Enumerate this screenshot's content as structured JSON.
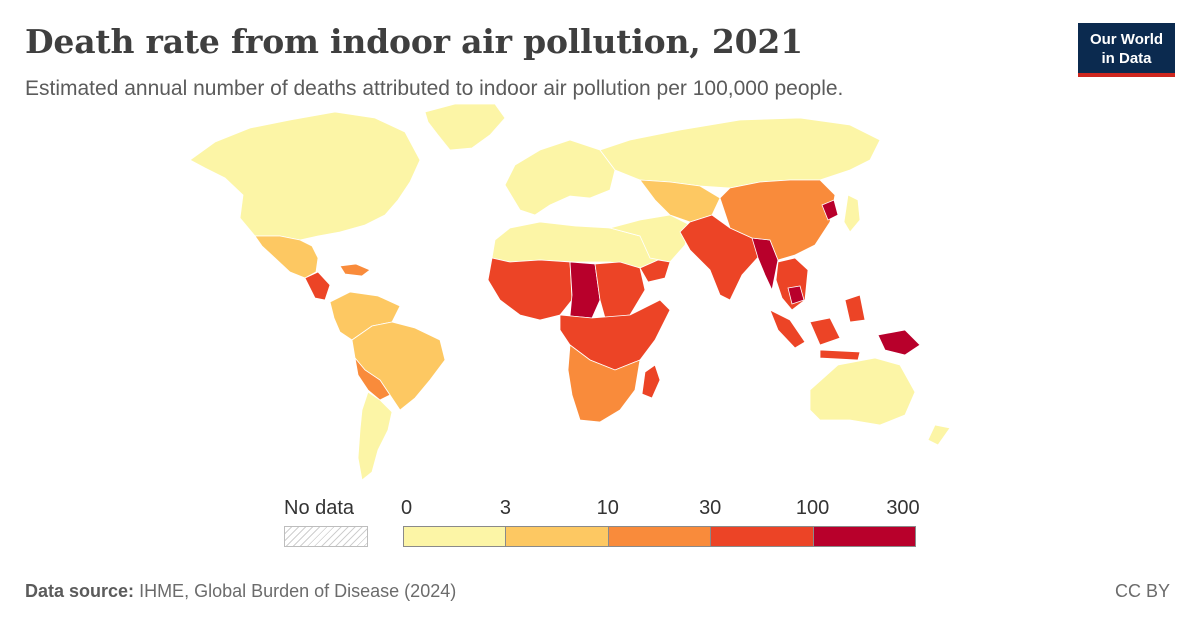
{
  "header": {
    "title": "Death rate from indoor air pollution, 2021",
    "subtitle": "Estimated annual number of deaths attributed to indoor air pollution per 100,000 people."
  },
  "logo": {
    "line1": "Our World",
    "line2": "in Data",
    "bg_color": "#0b2a4f",
    "accent_color": "#ce261e"
  },
  "legend": {
    "no_data_label": "No data",
    "ticks": [
      "0",
      "3",
      "10",
      "30",
      "100",
      "300"
    ],
    "bin_colors": [
      "#fcf5a6",
      "#fdc862",
      "#f98b3b",
      "#ec4426",
      "#b8002b"
    ]
  },
  "footer": {
    "source_label": "Data source:",
    "source_text": "IHME, Global Burden of Disease (2024)",
    "license": "CC BY"
  },
  "chart_data": {
    "type": "choropleth",
    "year": 2021,
    "scale_bins": [
      [
        0,
        3
      ],
      [
        3,
        10
      ],
      [
        10,
        30
      ],
      [
        30,
        100
      ],
      [
        100,
        300
      ]
    ],
    "regions": [
      {
        "name": "North America",
        "bin": 0
      },
      {
        "name": "Greenland",
        "bin": 0
      },
      {
        "name": "Mexico",
        "bin": 1
      },
      {
        "name": "Central America",
        "bin": 3
      },
      {
        "name": "Caribbean",
        "bin": 2
      },
      {
        "name": "Northern South America",
        "bin": 1
      },
      {
        "name": "Brazil",
        "bin": 1
      },
      {
        "name": "Bolivia & Paraguay",
        "bin": 2
      },
      {
        "name": "Southern South America",
        "bin": 0
      },
      {
        "name": "Europe",
        "bin": 0
      },
      {
        "name": "Russia",
        "bin": 0
      },
      {
        "name": "North Africa",
        "bin": 0
      },
      {
        "name": "West Africa",
        "bin": 3
      },
      {
        "name": "Chad & Central African Republic",
        "bin": 4
      },
      {
        "name": "Sudan & South Sudan",
        "bin": 3
      },
      {
        "name": "Central & East Africa",
        "bin": 3
      },
      {
        "name": "Southern Africa",
        "bin": 2
      },
      {
        "name": "Madagascar",
        "bin": 3
      },
      {
        "name": "Middle East",
        "bin": 0
      },
      {
        "name": "Yemen",
        "bin": 3
      },
      {
        "name": "Central Asia",
        "bin": 1
      },
      {
        "name": "South Asia",
        "bin": 3
      },
      {
        "name": "Myanmar",
        "bin": 4
      },
      {
        "name": "China & Mongolia",
        "bin": 2
      },
      {
        "name": "North Korea",
        "bin": 4
      },
      {
        "name": "Japan",
        "bin": 0
      },
      {
        "name": "Southeast Asia",
        "bin": 3
      },
      {
        "name": "Cambodia",
        "bin": 4
      },
      {
        "name": "Papua New Guinea",
        "bin": 4
      },
      {
        "name": "Australia",
        "bin": 0
      },
      {
        "name": "New Zealand",
        "bin": 0
      }
    ]
  }
}
